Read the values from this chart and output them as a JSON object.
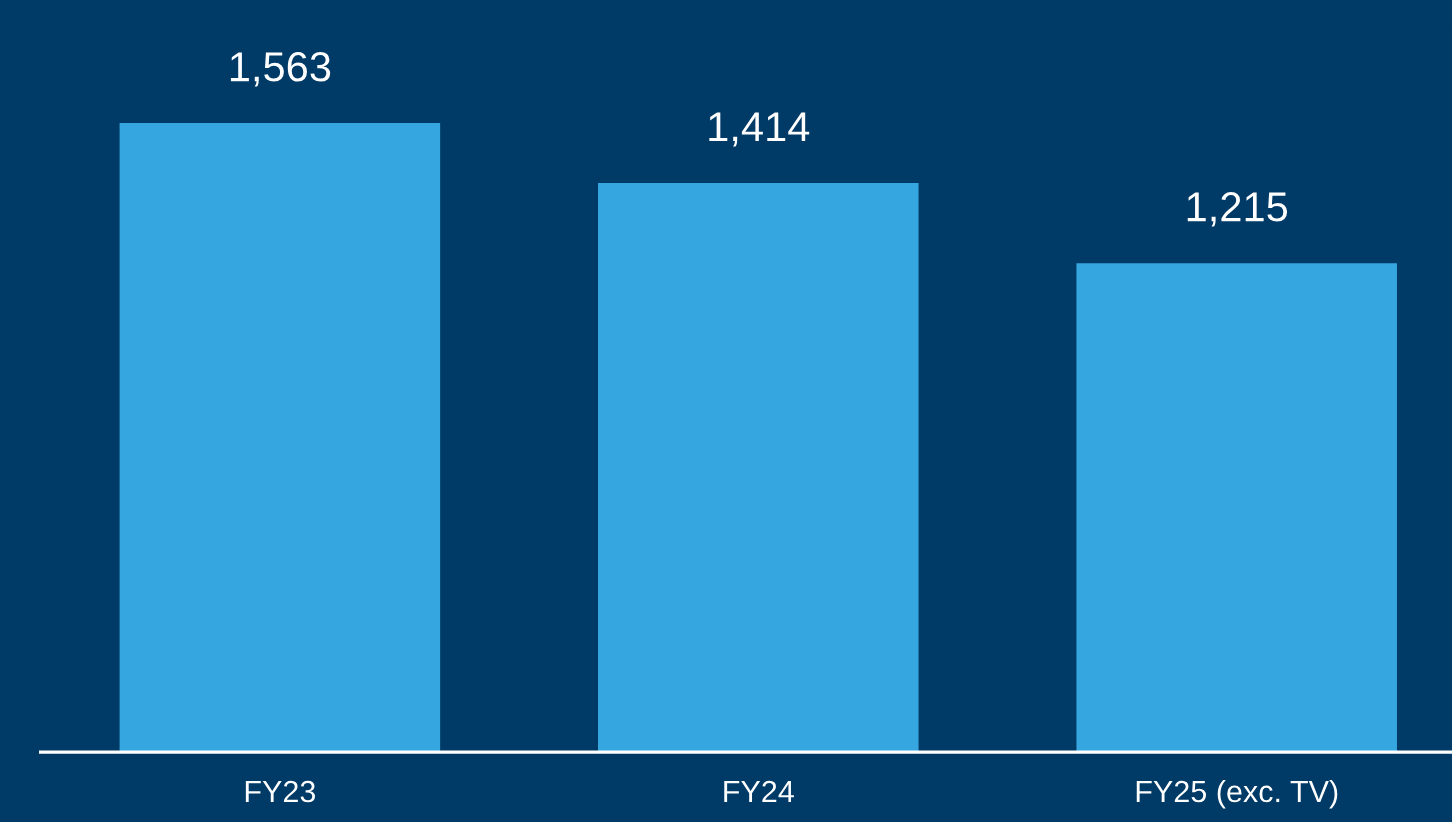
{
  "chart_data": {
    "type": "bar",
    "categories": [
      "FY23",
      "FY24",
      "FY25 (exc. TV)"
    ],
    "values": [
      1563,
      1414,
      1215
    ],
    "color": "#36a6e0",
    "data_labels": true,
    "value_labels": [
      "1,563",
      "1,414",
      "1,215"
    ],
    "grid": false,
    "legend": false
  }
}
